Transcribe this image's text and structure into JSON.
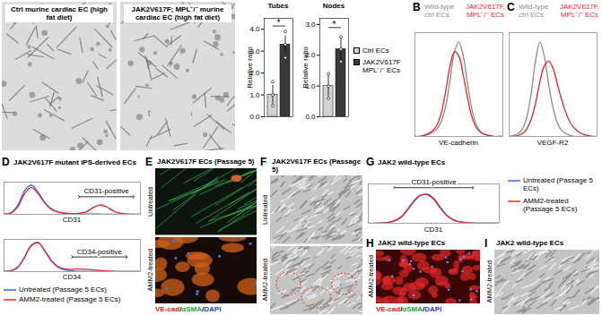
{
  "images": [
    {
      "title": "Ctrl murine cardiac EC (high fat diet)"
    },
    {
      "title": "JAK2V617F; MPL⁻/⁻ murine cardiac EC (high fat diet)"
    },
    {
      "letter": "E",
      "title": "JAK2V617F ECs (Passage 5)",
      "rows": [
        "Untreated",
        "AMM2-treated"
      ],
      "stain": "VE-cad/αSMA/DAPI",
      "colors": [
        "#e02020",
        "#1f9e3a",
        "#2040d0"
      ]
    },
    {
      "letter": "F",
      "title": "JAK2V617F ECs (Passage 5)",
      "rows": [
        "Untreated",
        "AMM2-treated"
      ]
    },
    {
      "letter": "H",
      "title": "JAK2 wild-type ECs",
      "rows": [
        "AMM2-treated"
      ],
      "stain": "VE-cad/αSMA/DAPI",
      "colors": [
        "#e02020",
        "#1f9e3a",
        "#2040d0"
      ]
    },
    {
      "letter": "I",
      "title": "JAK2 wild-type ECs",
      "rows": [
        "AMM2-treated"
      ]
    }
  ],
  "chart_data": [
    {
      "type": "bar",
      "ylabel": "Relative ratio",
      "legend": "right",
      "tick_labels": "y",
      "grid": false,
      "series": [
        {
          "name": "Ctrl ECs",
          "color": "#d3d3d3"
        },
        {
          "name": "JAK2V617F MPL⁻/⁻ ECs",
          "color": "#3a3a3a"
        }
      ],
      "facets": [
        {
          "title": "Tubes",
          "ylim": [
            0,
            4.5
          ],
          "yticks": [
            0,
            1,
            2,
            3,
            4
          ],
          "values": [
            1.0,
            3.3
          ],
          "errors": [
            0.45,
            0.4
          ],
          "points": [
            [
              0.5,
              1.0,
              1.6
            ],
            [
              2.7,
              3.3,
              3.9
            ]
          ],
          "significance": {
            "text": "*",
            "y": 4.15
          }
        },
        {
          "title": "Nodes",
          "ylim": [
            0,
            3.2
          ],
          "yticks": [
            0,
            1,
            2,
            3
          ],
          "values": [
            1.0,
            2.2
          ],
          "errors": [
            0.35,
            0.4
          ],
          "points": [
            [
              0.6,
              1.0,
              1.4
            ],
            [
              1.8,
              2.2,
              2.6
            ]
          ],
          "significance": {
            "text": "*",
            "y": 2.9
          }
        }
      ]
    },
    {
      "type": "line",
      "letter": "B",
      "legend": "top",
      "tick_labels": false,
      "grid": false,
      "x": [
        0,
        1,
        2,
        3,
        4,
        5,
        6,
        7,
        8,
        9,
        10,
        11,
        12,
        13,
        14,
        15,
        16,
        17,
        18,
        19,
        20
      ],
      "xlim": [
        0,
        20
      ],
      "ylim": [
        0,
        110
      ],
      "series": [
        {
          "name": "Wild-type ctrl ECs",
          "color": "#8c8c8c"
        },
        {
          "name": "JAK2V617F, MPL⁻/⁻ ECs",
          "color": "#e8242c"
        }
      ],
      "facets": [
        {
          "xlabel": "VE-cadherin",
          "values": [
            [
              0,
              0,
              1,
              2,
              4,
              8,
              16,
              32,
              60,
              90,
              100,
              85,
              55,
              28,
              12,
              5,
              2,
              1,
              0,
              0,
              0
            ],
            [
              0,
              0,
              1,
              3,
              6,
              12,
              25,
              48,
              75,
              90,
              85,
              65,
              40,
              20,
              9,
              4,
              2,
              1,
              0,
              0,
              0
            ]
          ]
        }
      ]
    },
    {
      "type": "line",
      "letter": "C",
      "legend": "top",
      "tick_labels": false,
      "grid": false,
      "x": [
        0,
        1,
        2,
        3,
        4,
        5,
        6,
        7,
        8,
        9,
        10,
        11,
        12,
        13,
        14,
        15,
        16,
        17,
        18,
        19,
        20
      ],
      "xlim": [
        0,
        20
      ],
      "ylim": [
        0,
        110
      ],
      "series": [
        {
          "name": "Wild-type ctrl ECs",
          "color": "#8c8c8c"
        },
        {
          "name": "JAK2V617F, MPL⁻/⁻ ECs",
          "color": "#e8242c"
        }
      ],
      "facets": [
        {
          "xlabel": "VEGF-R2",
          "values": [
            [
              0,
              1,
              3,
              8,
              20,
              45,
              80,
              100,
              85,
              55,
              30,
              14,
              6,
              3,
              1,
              0,
              0,
              0,
              0,
              0,
              0
            ],
            [
              0,
              0,
              1,
              3,
              8,
              18,
              35,
              58,
              75,
              80,
              72,
              55,
              38,
              24,
              14,
              8,
              4,
              2,
              1,
              0,
              0
            ]
          ]
        }
      ]
    },
    {
      "type": "line",
      "letter": "D",
      "title": "JAK2V617F mutant iPS-derived ECs",
      "legend": "bottom",
      "tick_labels": false,
      "grid": false,
      "x": [
        0,
        1,
        2,
        3,
        4,
        5,
        6,
        7,
        8,
        9,
        10,
        11,
        12,
        13,
        14,
        15,
        16,
        17,
        18,
        19,
        20
      ],
      "xlim": [
        0,
        20
      ],
      "ylim": [
        0,
        110
      ],
      "series": [
        {
          "name": "Untreated (Passage 5 ECs)",
          "color": "#2f6fd6"
        },
        {
          "name": "AMM2-treated (Passage 5 ECs)",
          "color": "#e8242c"
        }
      ],
      "facets": [
        {
          "xlabel": "CD31",
          "values": [
            [
              0,
              5,
              30,
              80,
              100,
              75,
              40,
              18,
              8,
              4,
              2,
              1,
              1,
              1,
              1,
              0,
              0,
              0,
              0,
              0,
              0
            ],
            [
              0,
              4,
              25,
              70,
              92,
              70,
              38,
              16,
              7,
              3,
              2,
              3,
              8,
              22,
              32,
              26,
              12,
              4,
              1,
              0,
              0
            ]
          ],
          "annotations": [
            {
              "text": "CD31-positive",
              "x": [
                11,
                19
              ],
              "y": 60
            }
          ]
        },
        {
          "xlabel": "CD34",
          "values": [
            [
              0,
              3,
              15,
              50,
              90,
              100,
              70,
              35,
              14,
              6,
              3,
              1,
              1,
              0,
              0,
              0,
              0,
              0,
              0,
              0,
              0
            ],
            [
              0,
              3,
              14,
              48,
              88,
              98,
              70,
              36,
              16,
              9,
              8,
              9,
              8,
              6,
              4,
              2,
              1,
              0,
              0,
              0,
              0
            ]
          ],
          "annotations": [
            {
              "text": "CD34-positive",
              "x": [
                10,
                18
              ],
              "y": 50
            }
          ]
        }
      ]
    },
    {
      "type": "line",
      "letter": "G",
      "title": "JAK2 wild-type ECs",
      "legend": "right",
      "tick_labels": false,
      "grid": false,
      "x": [
        0,
        1,
        2,
        3,
        4,
        5,
        6,
        7,
        8,
        9,
        10,
        11,
        12,
        13,
        14,
        15,
        16,
        17,
        18,
        19,
        20
      ],
      "xlim": [
        0,
        20
      ],
      "ylim": [
        0,
        135
      ],
      "series": [
        {
          "name": "Untreated (Passage 5 ECs)",
          "color": "#2f6fd6"
        },
        {
          "name": "AMM2-treated (Passage 5 ECs)",
          "color": "#e8242c"
        }
      ],
      "facets": [
        {
          "xlabel": "CD31",
          "values": [
            [
              0,
              0,
              1,
              3,
              8,
              20,
              45,
              75,
              95,
              100,
              85,
              55,
              28,
              12,
              5,
              2,
              1,
              0,
              0,
              0,
              0
            ],
            [
              0,
              0,
              1,
              3,
              9,
              22,
              48,
              78,
              97,
              98,
              82,
              52,
              26,
              11,
              5,
              2,
              1,
              0,
              0,
              0,
              0
            ]
          ],
          "annotations": [
            {
              "text": "CD31-positive",
              "x": [
                4,
                16
              ],
              "y": 122
            }
          ]
        }
      ]
    }
  ]
}
